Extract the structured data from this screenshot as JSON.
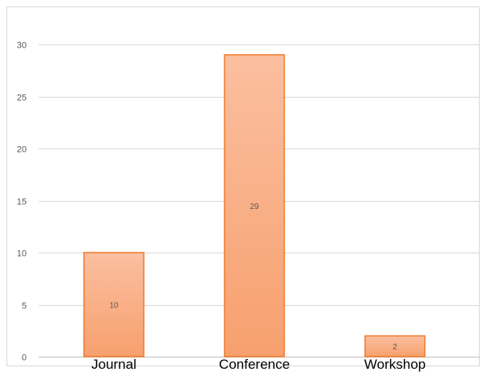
{
  "chart_data": {
    "type": "bar",
    "categories": [
      "Journal",
      "Conference",
      "Workshop"
    ],
    "values": [
      10,
      29,
      2
    ],
    "title": "",
    "xlabel": "",
    "ylabel": "",
    "ylim": [
      0,
      30
    ],
    "yticks": [
      0,
      5,
      10,
      15,
      20,
      25,
      30
    ],
    "grid": true,
    "legend": "none",
    "data_labels": [
      "10",
      "29",
      "2"
    ],
    "colors": {
      "bar_fill_top": "#fbbfa0",
      "bar_fill_bottom": "#f7a06e",
      "bar_stroke": "#f07a2b",
      "gridline": "#d9d9d9"
    }
  }
}
